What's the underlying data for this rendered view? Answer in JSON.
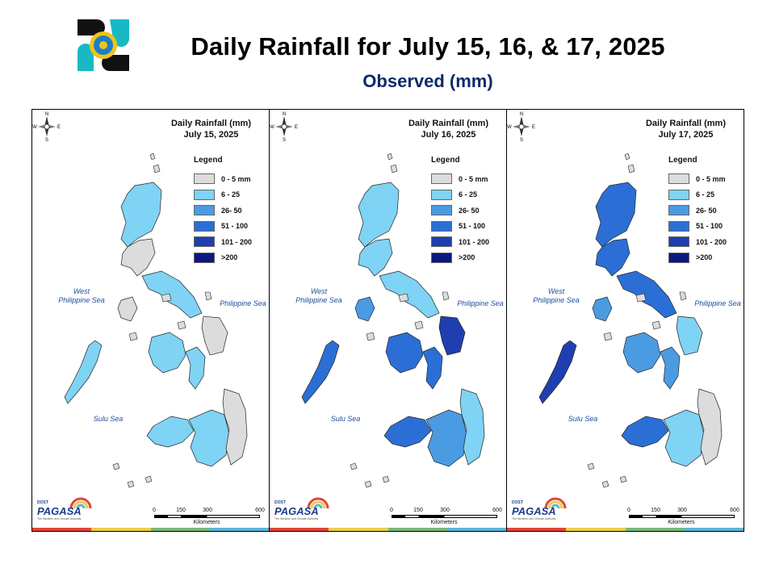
{
  "header": {
    "title": "Daily Rainfall for July 15, 16, & 17, 2025",
    "subtitle": "Observed (mm)",
    "logo_icon": "pagasa-seal-icon"
  },
  "legend": {
    "title": "Legend",
    "items": [
      {
        "label": "0 - 5 mm",
        "color": "#dcdcdc"
      },
      {
        "label": "6 - 25",
        "color": "#7fd3f4"
      },
      {
        "label": "26- 50",
        "color": "#4b9be3"
      },
      {
        "label": "51 - 100",
        "color": "#2b6fd6"
      },
      {
        "label": "101 - 200",
        "color": "#1f3fb0"
      },
      {
        "label": ">200",
        "color": "#0a1880"
      }
    ]
  },
  "seas": {
    "west": "West\nPhilippine Sea",
    "east": "Philippine Sea",
    "sulu": "Sulu Sea"
  },
  "compass": {
    "n": "N",
    "s": "S",
    "e": "E",
    "w": "W"
  },
  "scale": {
    "ticks": [
      "0",
      "150",
      "300",
      "600"
    ],
    "unit": "Kilometers"
  },
  "branding": {
    "dost": "DOST",
    "name": "PAGASA",
    "tagline": "The Weather and Climate Authority"
  },
  "stripe_colors": [
    "#e0453a",
    "#e8cf4a",
    "#79b87a",
    "#5fb4d6"
  ],
  "panels": [
    {
      "heading": "Daily Rainfall (mm)",
      "date": "July 15, 2025",
      "regions": {
        "luzon_north": 1,
        "luzon_central": 0,
        "luzon_south": 1,
        "mindoro": 0,
        "palawan": 1,
        "visayas_west": 1,
        "visayas_east": 1,
        "samar": 0,
        "mindanao_west": 1,
        "mindanao_central": 1,
        "mindanao_east": 0
      }
    },
    {
      "heading": "Daily Rainfall (mm)",
      "date": "July 16, 2025",
      "regions": {
        "luzon_north": 1,
        "luzon_central": 1,
        "luzon_south": 1,
        "mindoro": 2,
        "palawan": 3,
        "visayas_west": 3,
        "visayas_east": 3,
        "samar": 4,
        "mindanao_west": 3,
        "mindanao_central": 2,
        "mindanao_east": 1
      }
    },
    {
      "heading": "Daily Rainfall (mm)",
      "date": "July 17, 2025",
      "regions": {
        "luzon_north": 3,
        "luzon_central": 3,
        "luzon_south": 3,
        "mindoro": 2,
        "palawan": 4,
        "visayas_west": 2,
        "visayas_east": 2,
        "samar": 1,
        "mindanao_west": 3,
        "mindanao_central": 1,
        "mindanao_east": 0
      }
    }
  ]
}
